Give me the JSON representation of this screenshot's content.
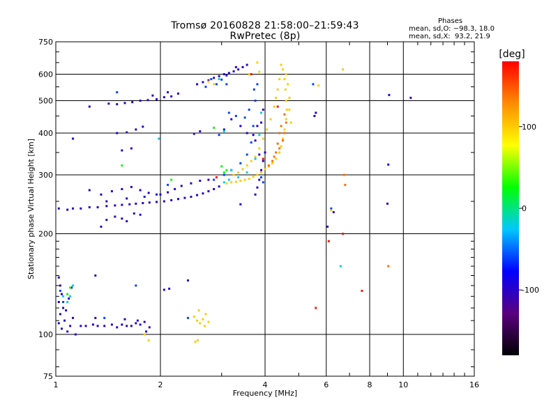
{
  "chart_data": {
    "type": "scatter",
    "title": "Tromsø 20160828 21:58:00–21:59:43",
    "subtitle": "RwPretec (8p)",
    "xlabel": "Frequency [MHz]",
    "ylabel": "Stationary phase Virtual Height [km]",
    "x_scale": "log2",
    "y_scale": "log",
    "xlim": [
      1,
      16
    ],
    "ylim": [
      75,
      750
    ],
    "x_ticks": [
      1,
      2,
      4,
      6,
      8,
      10,
      16
    ],
    "y_ticks": [
      75,
      100,
      200,
      300,
      400,
      500,
      600,
      750
    ],
    "x_grid": [
      2,
      4,
      6,
      8,
      10,
      16
    ],
    "y_grid": [
      100,
      200,
      300,
      400,
      500,
      600
    ],
    "phase_panel": {
      "heading": "Phases",
      "line_o": "mean, sd,O: −98.3, 18.0",
      "line_x": "mean, sd,X:  93.2, 21.9"
    },
    "colorbar": {
      "label": "[deg]",
      "range": [
        -180,
        180
      ],
      "ticks": [
        100,
        0,
        -100
      ],
      "colors": [
        "#000000",
        "#5a007f",
        "#0000ff",
        "#00c8ff",
        "#00ff00",
        "#ffff00",
        "#ff8c00",
        "#ff0000"
      ]
    },
    "series": [
      {
        "phase": -98,
        "points": [
          [
            1.02,
            238
          ],
          [
            1.08,
            236
          ],
          [
            1.12,
            238
          ],
          [
            1.18,
            238
          ],
          [
            1.25,
            240
          ],
          [
            1.32,
            240
          ],
          [
            1.4,
            242
          ],
          [
            1.48,
            243
          ],
          [
            1.55,
            244
          ],
          [
            1.63,
            245
          ],
          [
            1.7,
            246
          ],
          [
            1.78,
            247
          ],
          [
            1.86,
            248
          ],
          [
            1.95,
            249
          ],
          [
            2.05,
            250
          ],
          [
            2.15,
            252
          ],
          [
            2.25,
            254
          ],
          [
            2.35,
            256
          ],
          [
            2.45,
            258
          ],
          [
            2.55,
            261
          ],
          [
            2.65,
            264
          ],
          [
            2.75,
            268
          ],
          [
            2.85,
            272
          ],
          [
            2.95,
            277
          ],
          [
            1.25,
            270
          ],
          [
            1.35,
            262
          ],
          [
            1.45,
            268
          ],
          [
            1.55,
            272
          ],
          [
            1.65,
            276
          ],
          [
            1.75,
            270
          ],
          [
            1.85,
            265
          ],
          [
            1.95,
            262
          ],
          [
            2.1,
            266
          ],
          [
            2.2,
            272
          ],
          [
            2.3,
            278
          ],
          [
            2.45,
            283
          ],
          [
            2.6,
            288
          ],
          [
            2.75,
            290
          ],
          [
            1.4,
            250
          ],
          [
            1.6,
            255
          ],
          [
            1.8,
            258
          ],
          [
            2.0,
            262
          ],
          [
            1.35,
            210
          ],
          [
            1.4,
            220
          ],
          [
            1.48,
            225
          ],
          [
            1.55,
            222
          ],
          [
            1.6,
            218
          ],
          [
            1.68,
            230
          ],
          [
            1.75,
            228
          ],
          [
            1.55,
            355
          ],
          [
            1.65,
            360
          ],
          [
            1.5,
            400
          ],
          [
            1.6,
            402
          ],
          [
            1.7,
            410
          ],
          [
            1.78,
            418
          ],
          [
            1.42,
            490
          ],
          [
            1.5,
            488
          ],
          [
            1.58,
            492
          ],
          [
            1.66,
            495
          ],
          [
            1.75,
            500
          ],
          [
            1.84,
            502
          ],
          [
            1.95,
            505
          ],
          [
            2.05,
            512
          ],
          [
            2.15,
            515
          ],
          [
            2.25,
            525
          ],
          [
            1.9,
            518
          ],
          [
            2.1,
            530
          ],
          [
            2.55,
            560
          ],
          [
            2.65,
            568
          ],
          [
            2.75,
            575
          ],
          [
            2.85,
            585
          ],
          [
            2.95,
            592
          ],
          [
            3.05,
            600
          ],
          [
            3.15,
            605
          ],
          [
            3.25,
            612
          ],
          [
            3.35,
            620
          ],
          [
            3.45,
            630
          ],
          [
            3.55,
            640
          ],
          [
            3.3,
            630
          ],
          [
            3.1,
            595
          ],
          [
            1.02,
            148
          ],
          [
            1.03,
            140
          ],
          [
            1.04,
            132
          ],
          [
            1.02,
            125
          ],
          [
            1.05,
            120
          ],
          [
            1.03,
            115
          ],
          [
            1.06,
            110
          ],
          [
            1.02,
            108
          ],
          [
            1.04,
            104
          ],
          [
            1.08,
            102
          ],
          [
            1.1,
            106
          ],
          [
            1.12,
            112
          ],
          [
            1.07,
            118
          ],
          [
            1.09,
            128
          ],
          [
            1.11,
            138
          ],
          [
            1.14,
            100
          ],
          [
            1.18,
            106
          ],
          [
            1.22,
            106
          ],
          [
            1.28,
            107
          ],
          [
            1.32,
            106
          ],
          [
            1.38,
            106
          ],
          [
            1.45,
            107
          ],
          [
            1.5,
            105
          ],
          [
            1.55,
            107
          ],
          [
            1.6,
            106
          ],
          [
            1.65,
            106
          ],
          [
            1.7,
            108
          ],
          [
            1.75,
            107
          ],
          [
            1.8,
            109
          ],
          [
            1.3,
            112
          ],
          [
            1.58,
            111
          ],
          [
            1.72,
            110
          ],
          [
            1.82,
            102
          ],
          [
            1.86,
            105
          ],
          [
            2.05,
            136
          ],
          [
            2.12,
            137
          ],
          [
            2.4,
            145
          ],
          [
            1.3,
            150
          ],
          [
            1.12,
            385
          ],
          [
            1.25,
            480
          ],
          [
            3.75,
            262
          ],
          [
            3.8,
            275
          ],
          [
            3.85,
            290
          ],
          [
            3.9,
            310
          ],
          [
            3.95,
            330
          ],
          [
            4.0,
            350
          ],
          [
            3.85,
            345
          ],
          [
            3.75,
            380
          ],
          [
            3.9,
            430
          ],
          [
            3.95,
            470
          ],
          [
            3.8,
            420
          ],
          [
            3.7,
            395
          ],
          [
            3.55,
            400
          ],
          [
            3.4,
            420
          ],
          [
            3.2,
            440
          ],
          [
            3.05,
            410
          ],
          [
            2.6,
            405
          ],
          [
            2.5,
            398
          ],
          [
            3.4,
            245
          ],
          [
            6.3,
            232
          ],
          [
            6.05,
            210
          ],
          [
            9.0,
            246
          ],
          [
            9.05,
            322
          ],
          [
            9.1,
            520
          ],
          [
            10.5,
            510
          ],
          [
            5.6,
            460
          ],
          [
            5.55,
            450
          ]
        ]
      },
      {
        "phase": -60,
        "points": [
          [
            2.85,
            290
          ],
          [
            3.05,
            300
          ],
          [
            3.2,
            310
          ],
          [
            3.4,
            325
          ],
          [
            3.55,
            345
          ],
          [
            3.65,
            375
          ],
          [
            3.7,
            420
          ],
          [
            3.75,
            500
          ],
          [
            3.8,
            560
          ],
          [
            3.72,
            540
          ],
          [
            3.6,
            470
          ],
          [
            3.5,
            445
          ],
          [
            3.3,
            450
          ],
          [
            3.15,
            460
          ],
          [
            2.95,
            395
          ],
          [
            2.8,
            580
          ],
          [
            3.0,
            578
          ],
          [
            3.1,
            560
          ],
          [
            2.7,
            550
          ],
          [
            2.9,
            560
          ],
          [
            2.1,
            280
          ],
          [
            1.5,
            530
          ],
          [
            3.95,
            285
          ],
          [
            3.9,
            295
          ],
          [
            1.7,
            140
          ],
          [
            1.38,
            112
          ],
          [
            1.03,
            135
          ],
          [
            1.05,
            125
          ],
          [
            6.2,
            238
          ],
          [
            5.5,
            560
          ],
          [
            2.4,
            112
          ]
        ]
      },
      {
        "phase": -20,
        "points": [
          [
            3.05,
            285
          ],
          [
            3.15,
            290
          ],
          [
            3.25,
            300
          ],
          [
            3.35,
            295
          ],
          [
            3.55,
            305
          ],
          [
            3.75,
            335
          ],
          [
            3.85,
            395
          ],
          [
            3.9,
            460
          ],
          [
            2.95,
            580
          ],
          [
            3.2,
            310
          ],
          [
            1.05,
            130
          ],
          [
            1.12,
            140
          ],
          [
            1.1,
            130
          ],
          [
            1.08,
            125
          ],
          [
            6.6,
            160
          ],
          [
            3.05,
            405
          ],
          [
            1.98,
            385
          ]
        ]
      },
      {
        "phase": 25,
        "points": [
          [
            2.15,
            290
          ],
          [
            3.1,
            310
          ],
          [
            3.05,
            305
          ],
          [
            3.0,
            318
          ],
          [
            1.1,
            138
          ],
          [
            1.08,
            132
          ],
          [
            2.85,
            415
          ],
          [
            1.55,
            320
          ]
        ]
      },
      {
        "phase": 100,
        "points": [
          [
            3.1,
            283
          ],
          [
            3.2,
            285
          ],
          [
            3.3,
            286
          ],
          [
            3.4,
            288
          ],
          [
            3.5,
            290
          ],
          [
            3.6,
            292
          ],
          [
            3.7,
            296
          ],
          [
            3.8,
            300
          ],
          [
            3.9,
            305
          ],
          [
            4.0,
            312
          ],
          [
            4.1,
            318
          ],
          [
            4.2,
            325
          ],
          [
            4.3,
            335
          ],
          [
            4.4,
            350
          ],
          [
            4.45,
            365
          ],
          [
            4.5,
            385
          ],
          [
            4.55,
            410
          ],
          [
            4.6,
            440
          ],
          [
            4.62,
            470
          ],
          [
            4.6,
            500
          ],
          [
            4.58,
            540
          ],
          [
            4.55,
            580
          ],
          [
            4.5,
            620
          ],
          [
            4.45,
            640
          ],
          [
            4.4,
            580
          ],
          [
            4.35,
            540
          ],
          [
            4.3,
            510
          ],
          [
            4.25,
            480
          ],
          [
            4.15,
            440
          ],
          [
            4.05,
            410
          ],
          [
            3.95,
            385
          ],
          [
            3.85,
            360
          ],
          [
            3.75,
            340
          ],
          [
            3.65,
            330
          ],
          [
            3.55,
            320
          ],
          [
            3.45,
            312
          ],
          [
            3.35,
            305
          ],
          [
            3.25,
            300
          ],
          [
            4.7,
            470
          ],
          [
            4.75,
            430
          ],
          [
            4.7,
            510
          ],
          [
            4.65,
            560
          ],
          [
            4.6,
            600
          ],
          [
            3.6,
            600
          ],
          [
            3.8,
            650
          ],
          [
            3.85,
            610
          ],
          [
            2.6,
            108
          ],
          [
            2.65,
            111
          ],
          [
            2.7,
            115
          ],
          [
            2.55,
            110
          ],
          [
            2.5,
            113
          ],
          [
            2.75,
            109
          ],
          [
            2.58,
            118
          ],
          [
            2.68,
            106
          ],
          [
            2.52,
            95
          ],
          [
            2.56,
            96
          ],
          [
            1.85,
            96
          ],
          [
            1.8,
            100
          ],
          [
            2.85,
            560
          ],
          [
            2.75,
            570
          ],
          [
            6.2,
            235
          ],
          [
            6.7,
            620
          ],
          [
            5.7,
            555
          ]
        ]
      },
      {
        "phase": 140,
        "points": [
          [
            4.55,
            400
          ],
          [
            4.5,
            380
          ],
          [
            4.4,
            360
          ],
          [
            4.35,
            372
          ],
          [
            4.3,
            350
          ],
          [
            4.25,
            340
          ],
          [
            4.2,
            330
          ],
          [
            4.1,
            320
          ],
          [
            4.6,
            430
          ],
          [
            4.55,
            455
          ],
          [
            4.4,
            400
          ],
          [
            6.75,
            300
          ],
          [
            6.8,
            280
          ],
          [
            9.05,
            160
          ],
          [
            4.45,
            420
          ]
        ]
      },
      {
        "phase": 175,
        "points": [
          [
            6.1,
            190
          ],
          [
            6.7,
            200
          ],
          [
            7.6,
            135
          ],
          [
            5.6,
            120
          ],
          [
            3.65,
            600
          ],
          [
            4.35,
            480
          ],
          [
            2.9,
            295
          ],
          [
            3.95,
            335
          ]
        ]
      }
    ]
  }
}
